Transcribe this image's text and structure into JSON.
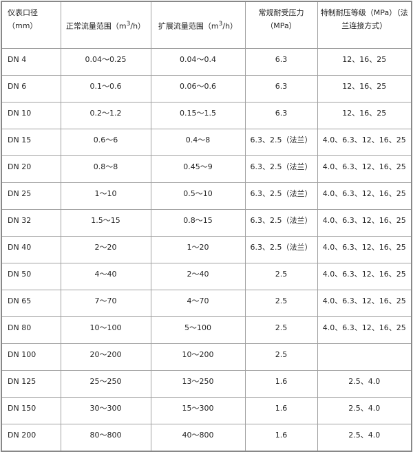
{
  "headers": [
    "仪表口径（mm）",
    "正常流量范围（m",
    "/h）",
    "扩展流量范围（m",
    "/h）",
    "常规耐受压力（MPa）",
    "特制耐压等级（MPa）（法兰连接方式）"
  ],
  "header_sup": "3",
  "rows": [
    [
      "DN 4",
      "0.04～0.25",
      "0.04～0.4",
      "6.3",
      "12、16、25"
    ],
    [
      "DN 6",
      "0.1～0.6",
      "0.06～0.6",
      "6.3",
      "12、16、25"
    ],
    [
      "DN 10",
      "0.2～1.2",
      "0.15～1.5",
      "6.3",
      "12、16、25"
    ],
    [
      "DN 15",
      "0.6～6",
      "0.4～8",
      "6.3、2.5（法兰）",
      "4.0、6.3、12、16、25"
    ],
    [
      "DN 20",
      "0.8～8",
      "0.45～9",
      "6.3、2.5（法兰）",
      "4.0、6.3、12、16、25"
    ],
    [
      "DN 25",
      "1～10",
      "0.5～10",
      "6.3、2.5（法兰）",
      "4.0、6.3、12、16、25"
    ],
    [
      "DN 32",
      "1.5～15",
      "0.8～15",
      "6.3、2.5（法兰）",
      "4.0、6.3、12、16、25"
    ],
    [
      "DN 40",
      "2～20",
      "1～20",
      "6.3、2.5（法兰）",
      "4.0、6.3、12、16、25"
    ],
    [
      "DN 50",
      "4～40",
      "2～40",
      "2.5",
      "4.0、6.3、12、16、25"
    ],
    [
      "DN 65",
      "7～70",
      "4～70",
      "2.5",
      "4.0、6.3、12、16、25"
    ],
    [
      "DN 80",
      "10～100",
      "5～100",
      "2.5",
      "4.0、6.3、12、16、25"
    ],
    [
      "DN 100",
      "20～200",
      "10～200",
      "2.5",
      ""
    ],
    [
      "DN 125",
      "25～250",
      "13～250",
      "1.6",
      "2.5、4.0"
    ],
    [
      "DN 150",
      "30～300",
      "15～300",
      "1.6",
      "2.5、4.0"
    ],
    [
      "DN 200",
      "80～800",
      "40～800",
      "1.6",
      "2.5、4.0"
    ]
  ]
}
